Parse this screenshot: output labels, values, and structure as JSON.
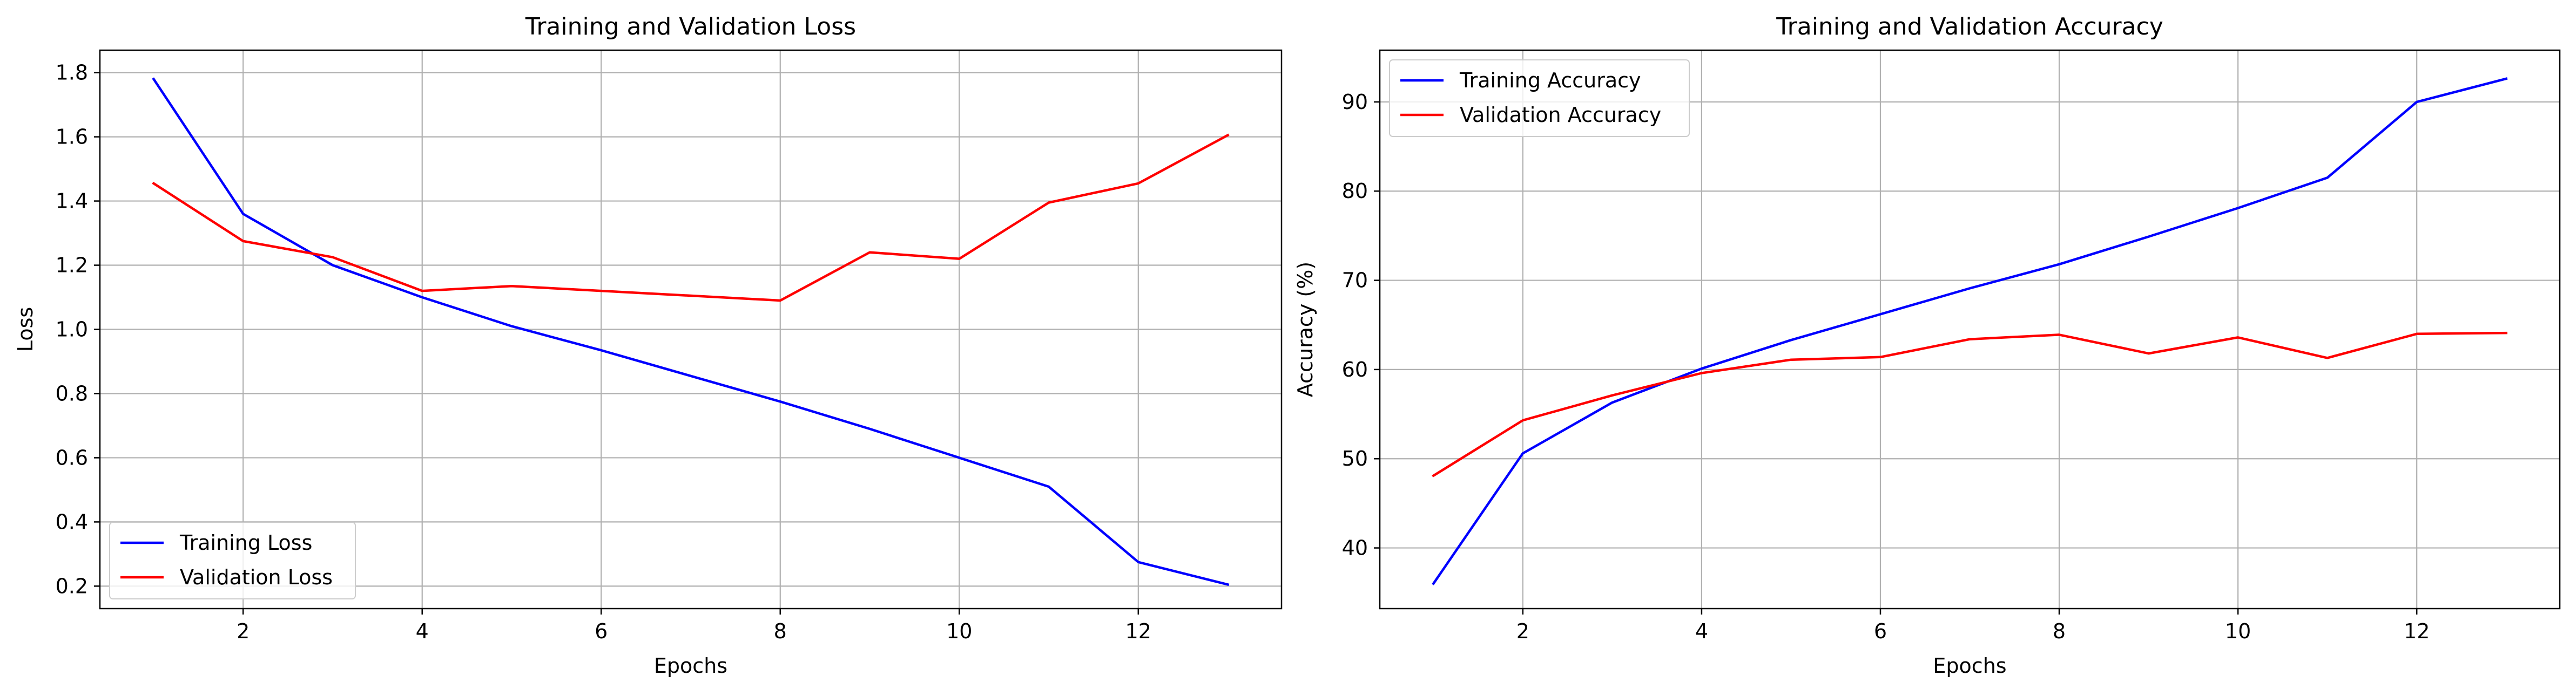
{
  "chart_data": [
    {
      "type": "line",
      "title": "Training and Validation Loss",
      "xlabel": "Epochs",
      "ylabel": "Loss",
      "x": [
        1,
        2,
        3,
        4,
        5,
        6,
        7,
        8,
        9,
        10,
        11,
        12,
        13
      ],
      "xlim": [
        0.4,
        13.6
      ],
      "ylim": [
        0.13,
        1.87
      ],
      "xticks": [
        2,
        4,
        6,
        8,
        10,
        12
      ],
      "xtick_labels": [
        "2",
        "4",
        "6",
        "8",
        "10",
        "12"
      ],
      "yticks": [
        0.2,
        0.4,
        0.6,
        0.8,
        1.0,
        1.2,
        1.4,
        1.6,
        1.8
      ],
      "ytick_labels": [
        "0.2",
        "0.4",
        "0.6",
        "0.8",
        "1.0",
        "1.2",
        "1.4",
        "1.6",
        "1.8"
      ],
      "grid": true,
      "legend_position": "lower-left",
      "series": [
        {
          "name": "Training Loss",
          "color": "#0000ff",
          "values": [
            1.78,
            1.36,
            1.2,
            1.1,
            1.01,
            0.935,
            0.855,
            0.775,
            0.69,
            0.6,
            0.51,
            0.275,
            0.205
          ]
        },
        {
          "name": "Validation Loss",
          "color": "#ff0000",
          "values": [
            1.455,
            1.275,
            1.225,
            1.12,
            1.135,
            1.12,
            1.105,
            1.09,
            1.24,
            1.22,
            1.395,
            1.455,
            1.605
          ]
        }
      ]
    },
    {
      "type": "line",
      "title": "Training and Validation Accuracy",
      "xlabel": "Epochs",
      "ylabel": "Accuracy (%)",
      "x": [
        1,
        2,
        3,
        4,
        5,
        6,
        7,
        8,
        9,
        10,
        11,
        12,
        13
      ],
      "xlim": [
        0.4,
        13.6
      ],
      "ylim": [
        33.2,
        95.8
      ],
      "xticks": [
        2,
        4,
        6,
        8,
        10,
        12
      ],
      "xtick_labels": [
        "2",
        "4",
        "6",
        "8",
        "10",
        "12"
      ],
      "yticks": [
        40,
        50,
        60,
        70,
        80,
        90
      ],
      "ytick_labels": [
        "40",
        "50",
        "60",
        "70",
        "80",
        "90"
      ],
      "grid": true,
      "legend_position": "upper-left",
      "series": [
        {
          "name": "Training Accuracy",
          "color": "#0000ff",
          "values": [
            36.0,
            50.6,
            56.3,
            60.1,
            63.3,
            66.2,
            69.1,
            71.8,
            74.9,
            78.1,
            81.5,
            90.0,
            92.6
          ]
        },
        {
          "name": "Validation Accuracy",
          "color": "#ff0000",
          "values": [
            48.1,
            54.3,
            57.1,
            59.6,
            61.1,
            61.4,
            63.4,
            63.9,
            61.8,
            63.6,
            61.3,
            64.0,
            64.1
          ]
        }
      ]
    }
  ]
}
